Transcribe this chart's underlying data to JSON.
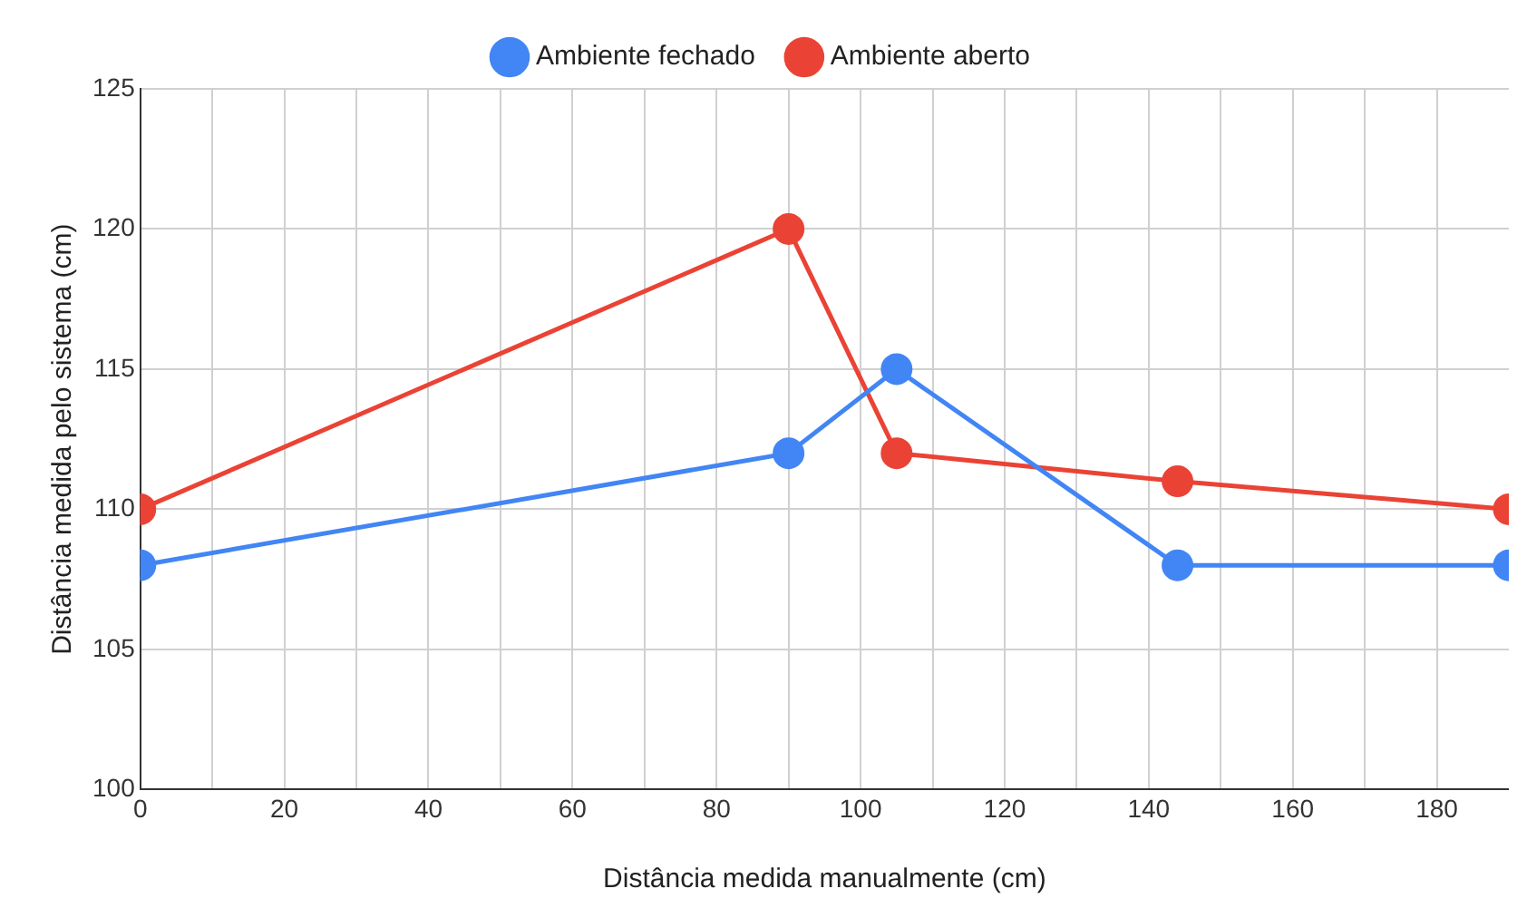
{
  "chart_data": {
    "type": "line",
    "xlabel": "Distância medida manualmente (cm)",
    "ylabel": "Distância medida pelo sistema (cm)",
    "x": [
      0,
      90,
      105,
      144,
      190
    ],
    "series": [
      {
        "name": "Ambiente fechado",
        "color": "#4285f4",
        "values": [
          108,
          112,
          115,
          108,
          108
        ]
      },
      {
        "name": "Ambiente aberto",
        "color": "#ea4335",
        "values": [
          110,
          120,
          112,
          111,
          110
        ]
      }
    ],
    "xlim": [
      0,
      190
    ],
    "xticks": [
      0,
      {
        "value": 10,
        "label": null
      },
      20,
      {
        "value": 30,
        "label": null
      },
      40,
      {
        "value": 50,
        "label": null
      },
      60,
      {
        "value": 70,
        "label": null
      },
      80,
      {
        "value": 90,
        "label": null
      },
      100,
      {
        "value": 110,
        "label": null
      },
      120,
      {
        "value": 130,
        "label": null
      },
      140,
      {
        "value": 150,
        "label": null
      },
      160,
      {
        "value": 170,
        "label": null
      },
      180
    ],
    "ylim": [
      100,
      125
    ],
    "yticks": [
      100,
      105,
      110,
      115,
      120,
      125
    ],
    "grid": true,
    "legend": "top",
    "marker": "circle",
    "line_style": "solid"
  }
}
